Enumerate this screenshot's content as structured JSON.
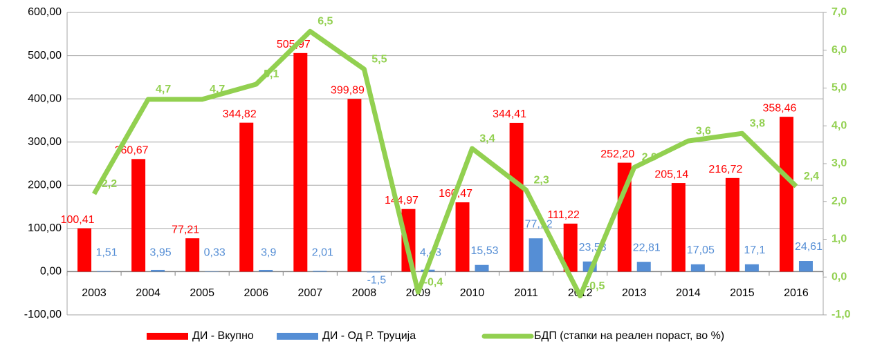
{
  "chart_data": {
    "type": "bar-line",
    "categories": [
      "2003",
      "2004",
      "2005",
      "2006",
      "2007",
      "2008",
      "2009",
      "2010",
      "2011",
      "2012",
      "2013",
      "2014",
      "2015",
      "2016"
    ],
    "series": [
      {
        "name": "ДИ - Вкупно",
        "color": "#ff0000",
        "type": "bar",
        "values": [
          100.41,
          260.67,
          77.21,
          344.82,
          505.97,
          399.89,
          144.97,
          160.47,
          344.41,
          111.22,
          252.2,
          205.14,
          216.72,
          358.46
        ],
        "value_labels": [
          "100,41",
          "260,67",
          "77,21",
          "344,82",
          "505,97",
          "399,89",
          "144,97",
          "160,47",
          "344,41",
          "111,22",
          "252,20",
          "205,14",
          "216,72",
          "358,46"
        ]
      },
      {
        "name": "ДИ - Од Р. Труција",
        "color": "#558ed5",
        "type": "bar",
        "values": [
          1.51,
          3.95,
          0.33,
          3.9,
          2.01,
          -1.5,
          4.43,
          15.53,
          77.12,
          23.53,
          22.81,
          17.05,
          17.1,
          24.61
        ],
        "value_labels": [
          "1,51",
          "3,95",
          "0,33",
          "3,9",
          "2,01",
          "-1,5",
          "4,43",
          "15,53",
          "77,12",
          "23,53",
          "22,81",
          "17,05",
          "17,1",
          "24,61"
        ]
      },
      {
        "name": "БДП (стапки на реален пораст, во %)",
        "color": "#92d050",
        "type": "line",
        "axis": "y2",
        "values": [
          2.2,
          4.7,
          4.7,
          5.1,
          6.5,
          5.5,
          -0.4,
          3.4,
          2.3,
          -0.5,
          2.9,
          3.6,
          3.8,
          2.4
        ],
        "value_labels": [
          "2,2",
          "4,7",
          "4,7",
          "5,1",
          "6,5",
          "5,5",
          "-0,4",
          "3,4",
          "2,3",
          "-0,5",
          "2,9",
          "3,6",
          "3,8",
          "2,4"
        ]
      }
    ],
    "ylim": [
      -100,
      600
    ],
    "yticks": [
      {
        "value": -100,
        "label": "-100,00"
      },
      {
        "value": 0,
        "label": "0,00"
      },
      {
        "value": 100,
        "label": "100,00"
      },
      {
        "value": 200,
        "label": "200,00"
      },
      {
        "value": 300,
        "label": "300,00"
      },
      {
        "value": 400,
        "label": "400,00"
      },
      {
        "value": 500,
        "label": "500,00"
      },
      {
        "value": 600,
        "label": "600,00"
      }
    ],
    "y2lim": [
      -1,
      7
    ],
    "y2ticks": [
      {
        "value": -1,
        "label": "-1,0"
      },
      {
        "value": 0,
        "label": "0,0"
      },
      {
        "value": 1,
        "label": "1,0"
      },
      {
        "value": 2,
        "label": "2,0"
      },
      {
        "value": 3,
        "label": "3,0"
      },
      {
        "value": 4,
        "label": "4,0"
      },
      {
        "value": 5,
        "label": "5,0"
      },
      {
        "value": 6,
        "label": "6,0"
      },
      {
        "value": 7,
        "label": "7,0"
      }
    ],
    "grid": true
  }
}
